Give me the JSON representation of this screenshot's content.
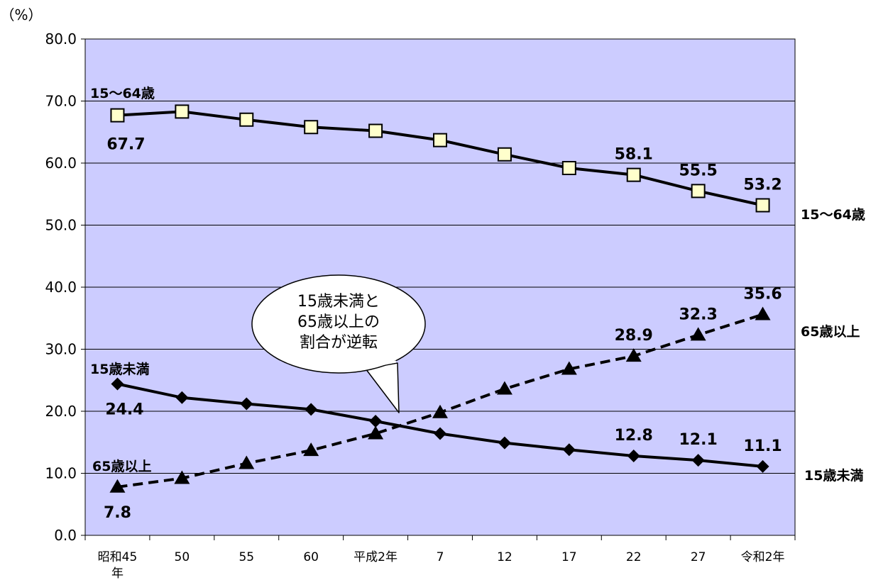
{
  "chart_data": {
    "type": "line",
    "unit_label": "（%）",
    "categories": [
      "昭和45\n年",
      "50",
      "55",
      "60",
      "平成2年",
      "7",
      "12",
      "17",
      "22",
      "27",
      "令和2年"
    ],
    "ylim": [
      0,
      80
    ],
    "yticks": [
      "0.0",
      "10.0",
      "20.0",
      "30.0",
      "40.0",
      "50.0",
      "60.0",
      "70.0",
      "80.0"
    ],
    "grid": true,
    "plot_background": "#ccccff",
    "series": [
      {
        "name": "15～64歳",
        "marker": "square",
        "line_style": "solid",
        "marker_color": "#ffffcc",
        "values": [
          67.7,
          68.3,
          67.0,
          65.8,
          65.2,
          63.7,
          61.4,
          59.2,
          58.1,
          55.5,
          53.2
        ],
        "data_labels": {
          "0": "67.7",
          "8": "58.1",
          "9": "55.5",
          "10": "53.2"
        },
        "left_label": "15～64歳",
        "right_label": "15～64歳"
      },
      {
        "name": "15歳未満",
        "marker": "diamond",
        "line_style": "solid",
        "values": [
          24.4,
          22.2,
          21.2,
          20.3,
          18.4,
          16.4,
          14.9,
          13.8,
          12.8,
          12.1,
          11.1
        ],
        "data_labels": {
          "0": "24.4",
          "8": "12.8",
          "9": "12.1",
          "10": "11.1"
        },
        "left_label": "15歳未満",
        "right_label": "15歳未満"
      },
      {
        "name": "65歳以上",
        "marker": "triangle",
        "line_style": "dashed",
        "values": [
          7.8,
          9.2,
          11.6,
          13.7,
          16.4,
          19.8,
          23.6,
          26.8,
          28.9,
          32.3,
          35.6
        ],
        "data_labels": {
          "0": "7.8",
          "8": "28.9",
          "9": "32.3",
          "10": "35.6"
        },
        "left_label": "65歳以上",
        "right_label": "65歳以上"
      }
    ],
    "annotation": {
      "lines": [
        "15歳未満と",
        "65歳以上の",
        "割合が逆転"
      ]
    }
  }
}
